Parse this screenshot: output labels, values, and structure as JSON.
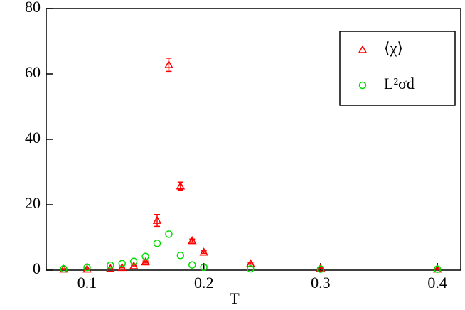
{
  "chart_data": {
    "type": "scatter",
    "x_label": "T",
    "xlim": [
      0.065,
      0.42
    ],
    "ylim": [
      0,
      80
    ],
    "xticks": [
      0.1,
      0.2,
      0.3,
      0.4
    ],
    "yticks": [
      0,
      20,
      40,
      60,
      80
    ],
    "series": [
      {
        "name": "⟨χ⟩",
        "color": "#ff0000",
        "marker": "triangle",
        "x": [
          0.08,
          0.1,
          0.12,
          0.13,
          0.14,
          0.15,
          0.16,
          0.17,
          0.18,
          0.19,
          0.2,
          0.24,
          0.3,
          0.4
        ],
        "values": [
          0.3,
          0.3,
          0.5,
          0.8,
          1.3,
          2.5,
          15.2,
          62.8,
          25.7,
          9.0,
          5.5,
          2.0,
          0.6,
          0.3
        ],
        "errors": [
          0.1,
          0.1,
          0.1,
          0.1,
          0.2,
          0.3,
          1.8,
          2.0,
          1.2,
          0.5,
          0.4,
          0.2,
          0.1,
          0.1
        ]
      },
      {
        "name": "L²σd",
        "color": "#00dd00",
        "marker": "circle",
        "x": [
          0.08,
          0.1,
          0.12,
          0.13,
          0.14,
          0.15,
          0.16,
          0.17,
          0.18,
          0.19,
          0.2,
          0.24,
          0.3,
          0.4
        ],
        "values": [
          0.4,
          0.8,
          1.5,
          2.0,
          2.7,
          4.2,
          8.2,
          11.0,
          4.5,
          1.6,
          0.9,
          0.4,
          0.3,
          0.3
        ]
      }
    ]
  }
}
